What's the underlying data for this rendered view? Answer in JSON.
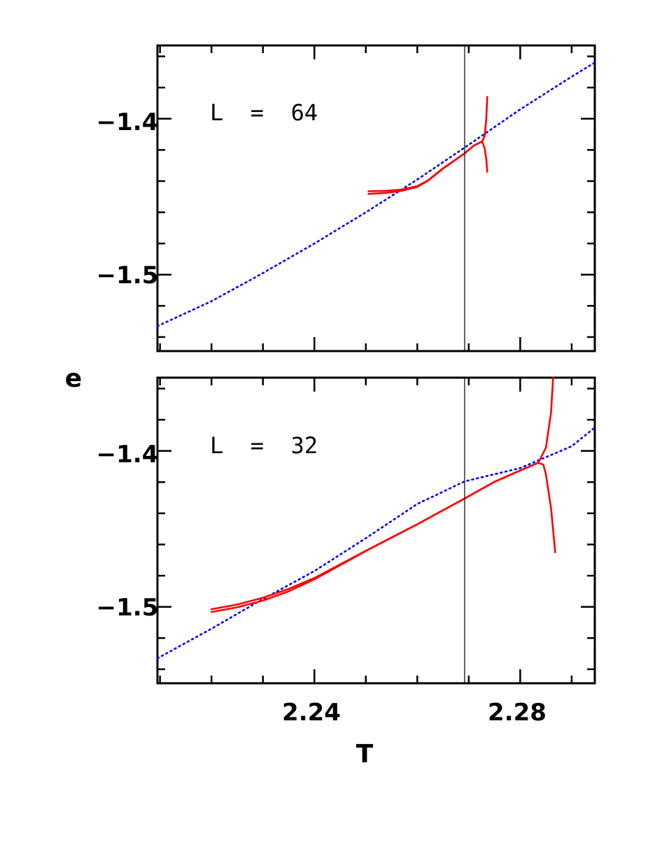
{
  "chart_data": {
    "type": "line",
    "xlabel": "T",
    "ylabel": "e",
    "xlim": [
      2.2095,
      2.2945
    ],
    "ylim": [
      -1.549,
      -1.353
    ],
    "x_ticks": [
      2.24,
      2.28
    ],
    "y_ticks": [
      -1.4,
      -1.5
    ],
    "x_tick_labels": [
      "2.24",
      "2.28"
    ],
    "y_tick_labels": [
      "−1.4",
      "−1.5"
    ],
    "reference_x": 2.2692,
    "colors": {
      "curve": "#ff0000",
      "reference": "#0000ff",
      "vline": "#000000"
    },
    "panels": [
      {
        "label": "L  =  64",
        "reference_series": {
          "style": "dotted",
          "x": [
            2.2095,
            2.22,
            2.23,
            2.24,
            2.25,
            2.26,
            2.2692,
            2.28,
            2.29,
            2.2945
          ],
          "y": [
            -1.533,
            -1.517,
            -1.499,
            -1.48,
            -1.46,
            -1.439,
            -1.4185,
            -1.394,
            -1.373,
            -1.364
          ]
        },
        "curves": [
          {
            "x": [
              2.2505,
              2.254,
              2.257,
              2.26,
              2.262,
              2.265,
              2.2692,
              2.271,
              2.2726
            ],
            "y": [
              -1.4465,
              -1.4462,
              -1.4455,
              -1.4432,
              -1.4397,
              -1.4318,
              -1.4222,
              -1.4172,
              -1.4146
            ]
          },
          {
            "x": [
              2.2505,
              2.254,
              2.257,
              2.26,
              2.262,
              2.265,
              2.2692,
              2.271,
              2.2726
            ],
            "y": [
              -1.4482,
              -1.4475,
              -1.4462,
              -1.4437,
              -1.4399,
              -1.432,
              -1.4222,
              -1.4172,
              -1.4146
            ]
          },
          {
            "x": [
              2.2726,
              2.2731,
              2.2734,
              2.2736
            ],
            "y": [
              -1.4146,
              -1.411,
              -1.4,
              -1.386
            ]
          },
          {
            "x": [
              2.2726,
              2.2731,
              2.2734,
              2.2736
            ],
            "y": [
              -1.4146,
              -1.419,
              -1.426,
              -1.434
            ]
          }
        ]
      },
      {
        "label": "L  =  32",
        "reference_series": {
          "style": "dotted",
          "x": [
            2.2095,
            2.22,
            2.23,
            2.24,
            2.25,
            2.26,
            2.2692,
            2.28,
            2.29,
            2.2945
          ],
          "y": [
            -1.533,
            -1.514,
            -1.495,
            -1.477,
            -1.456,
            -1.434,
            -1.4195,
            -1.411,
            -1.397,
            -1.385
          ]
        },
        "curves": [
          {
            "x": [
              2.22,
              2.225,
              2.23,
              2.235,
              2.24,
              2.25,
              2.26,
              2.2692,
              2.275,
              2.28,
              2.2835
            ],
            "y": [
              -1.5015,
              -1.4985,
              -1.4942,
              -1.4885,
              -1.4815,
              -1.464,
              -1.447,
              -1.4305,
              -1.4198,
              -1.4125,
              -1.4076
            ]
          },
          {
            "x": [
              2.22,
              2.225,
              2.23,
              2.235,
              2.24,
              2.25,
              2.26,
              2.2692,
              2.275,
              2.28,
              2.2835
            ],
            "y": [
              -1.5033,
              -1.5003,
              -1.496,
              -1.49,
              -1.4823,
              -1.4642,
              -1.447,
              -1.4305,
              -1.4198,
              -1.4125,
              -1.4076
            ]
          },
          {
            "x": [
              2.2835,
              2.285,
              2.286,
              2.2864
            ],
            "y": [
              -1.4076,
              -1.398,
              -1.375,
              -1.353
            ]
          },
          {
            "x": [
              2.2835,
              2.2845,
              2.285,
              2.286,
              2.2868
            ],
            "y": [
              -1.4076,
              -1.4088,
              -1.415,
              -1.437,
              -1.465
            ]
          }
        ]
      }
    ]
  }
}
